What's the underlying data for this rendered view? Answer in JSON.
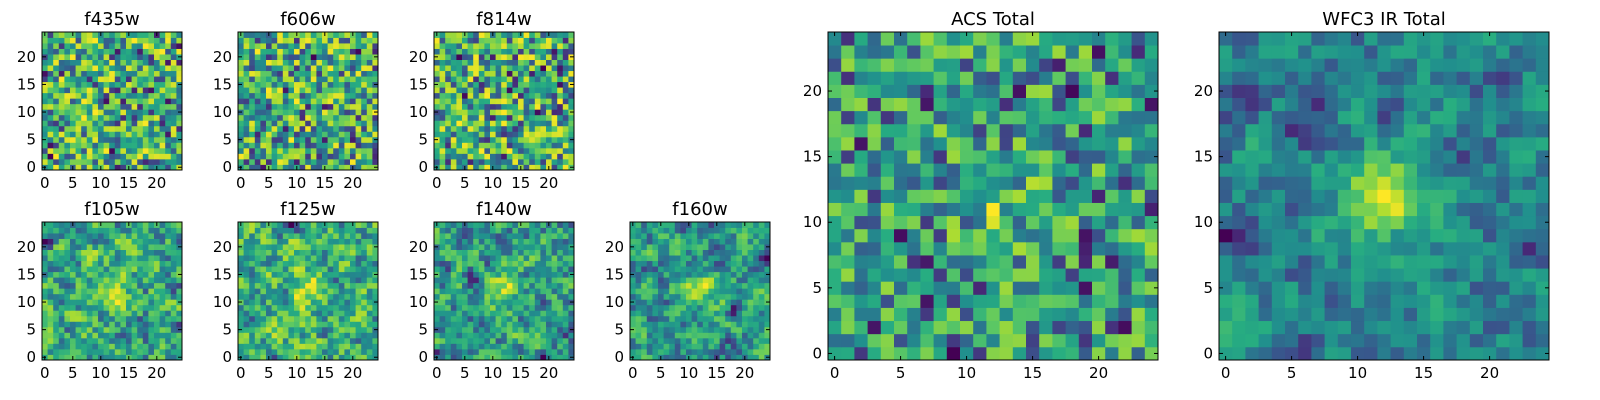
{
  "colormap": "viridis",
  "chart_data": [
    {
      "type": "heatmap",
      "title": "f435w",
      "grid_size": 25,
      "xlim": [
        0,
        24
      ],
      "ylim": [
        0,
        24
      ],
      "xticks": [
        0,
        5,
        10,
        15,
        20
      ],
      "yticks": [
        0,
        5,
        10,
        15,
        20
      ],
      "pattern": "uniform random noise",
      "seed": 101
    },
    {
      "type": "heatmap",
      "title": "f606w",
      "grid_size": 25,
      "xlim": [
        0,
        24
      ],
      "ylim": [
        0,
        24
      ],
      "xticks": [
        0,
        5,
        10,
        15,
        20
      ],
      "yticks": [
        0,
        5,
        10,
        15,
        20
      ],
      "pattern": "uniform random noise",
      "seed": 202
    },
    {
      "type": "heatmap",
      "title": "f814w",
      "grid_size": 25,
      "xlim": [
        0,
        24
      ],
      "ylim": [
        0,
        24
      ],
      "xticks": [
        0,
        5,
        10,
        15,
        20
      ],
      "yticks": [
        0,
        5,
        10,
        15,
        20
      ],
      "pattern": "uniform random noise",
      "seed": 303
    },
    {
      "type": "heatmap",
      "title": "f105w",
      "grid_size": 25,
      "xlim": [
        0,
        24
      ],
      "ylim": [
        0,
        24
      ],
      "xticks": [
        0,
        5,
        10,
        15,
        20
      ],
      "yticks": [
        0,
        5,
        10,
        15,
        20
      ],
      "pattern": "smoothed noise, faint central source",
      "seed": 404
    },
    {
      "type": "heatmap",
      "title": "f125w",
      "grid_size": 25,
      "xlim": [
        0,
        24
      ],
      "ylim": [
        0,
        24
      ],
      "xticks": [
        0,
        5,
        10,
        15,
        20
      ],
      "yticks": [
        0,
        5,
        10,
        15,
        20
      ],
      "pattern": "smoothed noise, faint central source",
      "seed": 505
    },
    {
      "type": "heatmap",
      "title": "f140w",
      "grid_size": 25,
      "xlim": [
        0,
        24
      ],
      "ylim": [
        0,
        24
      ],
      "xticks": [
        0,
        5,
        10,
        15,
        20
      ],
      "yticks": [
        0,
        5,
        10,
        15,
        20
      ],
      "pattern": "smoothed noise, faint central source",
      "seed": 606
    },
    {
      "type": "heatmap",
      "title": "f160w",
      "grid_size": 25,
      "xlim": [
        0,
        24
      ],
      "ylim": [
        0,
        24
      ],
      "xticks": [
        0,
        5,
        10,
        15,
        20
      ],
      "yticks": [
        0,
        5,
        10,
        15,
        20
      ],
      "pattern": "smoothed noise, central source near (12,12)",
      "seed": 707
    },
    {
      "type": "heatmap",
      "title": "ACS Total",
      "grid_size": 25,
      "xlim": [
        0,
        24
      ],
      "ylim": [
        0,
        24
      ],
      "xticks": [
        0,
        5,
        10,
        15,
        20
      ],
      "yticks": [
        0,
        5,
        10,
        15,
        20
      ],
      "pattern": "noise with faint central source",
      "seed": 808
    },
    {
      "type": "heatmap",
      "title": "WFC3 IR Total",
      "grid_size": 25,
      "xlim": [
        0,
        24
      ],
      "ylim": [
        0,
        24
      ],
      "xticks": [
        0,
        5,
        10,
        15,
        20
      ],
      "yticks": [
        0,
        5,
        10,
        15,
        20
      ],
      "pattern": "smoothed noise with bright central source near (12,12)",
      "seed": 909
    }
  ]
}
